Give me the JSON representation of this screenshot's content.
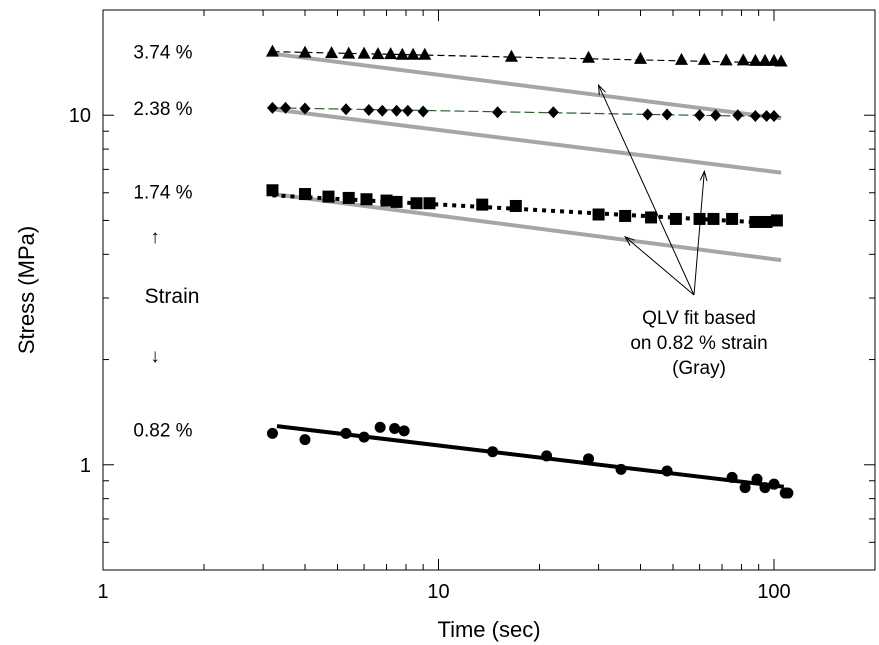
{
  "chart_data": {
    "type": "scatter",
    "title": "",
    "xlabel": "Time (sec)",
    "ylabel": "Stress (MPa)",
    "x_scale": "log",
    "y_scale": "log",
    "xlim": [
      1,
      200
    ],
    "ylim": [
      0.5,
      20
    ],
    "grid": false,
    "x_ticks": [
      {
        "value": 1,
        "label": "1"
      },
      {
        "value": 10,
        "label": "10"
      },
      {
        "value": 100,
        "label": "100"
      }
    ],
    "y_ticks": [
      {
        "value": 1,
        "label": "1"
      },
      {
        "value": 10,
        "label": "10"
      }
    ],
    "series": [
      {
        "name": "3.74 %",
        "marker": "triangle",
        "line_style": "dashed-thin",
        "fit_line": [
          [
            3.2,
            15.2
          ],
          [
            105,
            14.1
          ]
        ],
        "points": [
          [
            3.2,
            15.2
          ],
          [
            4.0,
            15.1
          ],
          [
            4.8,
            15.05
          ],
          [
            5.4,
            15.0
          ],
          [
            6.0,
            15.0
          ],
          [
            6.6,
            14.95
          ],
          [
            7.2,
            14.95
          ],
          [
            7.8,
            14.9
          ],
          [
            8.4,
            14.9
          ],
          [
            9.1,
            14.9
          ],
          [
            16.5,
            14.7
          ],
          [
            28,
            14.6
          ],
          [
            40,
            14.5
          ],
          [
            53,
            14.4
          ],
          [
            62,
            14.4
          ],
          [
            72,
            14.35
          ],
          [
            81,
            14.35
          ],
          [
            88,
            14.3
          ],
          [
            94,
            14.3
          ],
          [
            100,
            14.3
          ],
          [
            105,
            14.25
          ]
        ]
      },
      {
        "name": "2.38 %",
        "marker": "diamond",
        "line_style": "dashed-green",
        "fit_line": [
          [
            3.2,
            10.5
          ],
          [
            105,
            9.9
          ]
        ],
        "points": [
          [
            3.2,
            10.5
          ],
          [
            3.5,
            10.5
          ],
          [
            4.0,
            10.45
          ],
          [
            5.3,
            10.4
          ],
          [
            6.2,
            10.35
          ],
          [
            6.8,
            10.3
          ],
          [
            7.5,
            10.3
          ],
          [
            8.1,
            10.3
          ],
          [
            9.0,
            10.25
          ],
          [
            15,
            10.2
          ],
          [
            22,
            10.2
          ],
          [
            42,
            10.05
          ],
          [
            48,
            10.05
          ],
          [
            60,
            10.0
          ],
          [
            67,
            10.0
          ],
          [
            78,
            10.0
          ],
          [
            88,
            9.95
          ],
          [
            95,
            9.95
          ],
          [
            100,
            9.95
          ]
        ]
      },
      {
        "name": "1.74 %",
        "marker": "square",
        "line_style": "dotted-bold",
        "fit_line": [
          [
            3.2,
            5.9
          ],
          [
            105,
            4.9
          ]
        ],
        "points": [
          [
            3.2,
            6.1
          ],
          [
            4.0,
            5.95
          ],
          [
            4.7,
            5.85
          ],
          [
            5.4,
            5.8
          ],
          [
            6.1,
            5.75
          ],
          [
            7.0,
            5.7
          ],
          [
            7.5,
            5.65
          ],
          [
            8.6,
            5.6
          ],
          [
            9.4,
            5.6
          ],
          [
            13.5,
            5.55
          ],
          [
            17,
            5.5
          ],
          [
            30,
            5.2
          ],
          [
            36,
            5.15
          ],
          [
            43,
            5.1
          ],
          [
            51,
            5.05
          ],
          [
            60,
            5.05
          ],
          [
            66,
            5.05
          ],
          [
            75,
            5.05
          ],
          [
            88,
            4.95
          ],
          [
            95,
            4.95
          ],
          [
            102,
            5.0
          ]
        ]
      },
      {
        "name": "0.82 %",
        "marker": "circle",
        "line_style": "solid-bold",
        "fit_line": [
          [
            3.3,
            1.29
          ],
          [
            107,
            0.865
          ]
        ],
        "points": [
          [
            3.2,
            1.23
          ],
          [
            4.0,
            1.18
          ],
          [
            5.3,
            1.23
          ],
          [
            6.0,
            1.2
          ],
          [
            6.7,
            1.28
          ],
          [
            7.4,
            1.27
          ],
          [
            7.9,
            1.25
          ],
          [
            14.5,
            1.09
          ],
          [
            21,
            1.06
          ],
          [
            28,
            1.04
          ],
          [
            35,
            0.97
          ],
          [
            48,
            0.96
          ],
          [
            75,
            0.92
          ],
          [
            82,
            0.86
          ],
          [
            89,
            0.91
          ],
          [
            94,
            0.86
          ],
          [
            100,
            0.88
          ],
          [
            108,
            0.83
          ],
          [
            110,
            0.83
          ]
        ]
      }
    ],
    "qlv_fit": {
      "color": "#a6a6a6",
      "lines": [
        [
          [
            3.2,
            15.0
          ],
          [
            105,
            9.8
          ]
        ],
        [
          [
            3.2,
            10.4
          ],
          [
            105,
            6.85
          ]
        ],
        [
          [
            3.2,
            5.95
          ],
          [
            105,
            3.85
          ]
        ]
      ]
    },
    "annotations": {
      "strain_up_arrow": "↑",
      "strain_label": "Strain",
      "strain_down_arrow": "↓",
      "qlv_text": [
        "QLV fit based",
        "on 0.82 % strain",
        "(Gray)"
      ]
    }
  }
}
